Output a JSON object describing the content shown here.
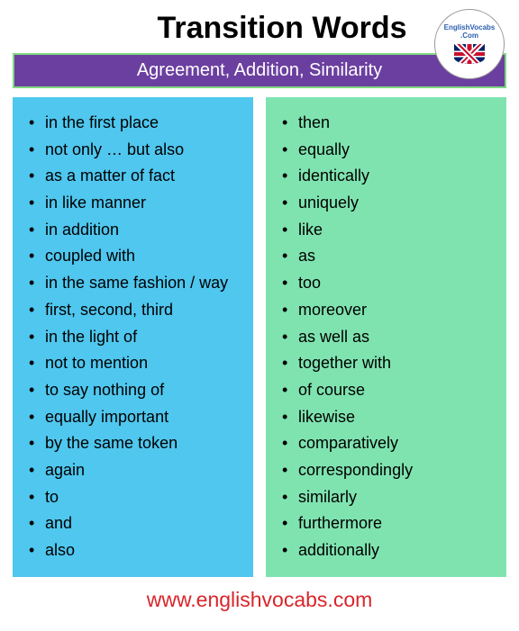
{
  "title": "Transition Words",
  "logo": {
    "line1": "EnglishVocabs",
    "line2": ".Com"
  },
  "subtitle": "Agreement, Addition, Similarity",
  "colors": {
    "subtitle_bg": "#6b3fa0",
    "subtitle_border": "#7fd87f",
    "left_col_bg": "#4fc7ef",
    "right_col_bg": "#7fe3b0",
    "footer_color": "#d9252a",
    "title_color": "#000000"
  },
  "left_items": [
    "in the first place",
    "not only … but also",
    "as a matter of fact",
    "in like manner",
    "in addition",
    "coupled with",
    "in the same fashion / way",
    "first, second, third",
    "in the light of",
    "not to mention",
    "to say nothing of",
    "equally important",
    "by the same token",
    "again",
    "to",
    "and",
    "also"
  ],
  "right_items": [
    "then",
    "equally",
    "identically",
    "uniquely",
    "like",
    "as",
    "too",
    "moreover",
    "as well as",
    "together with",
    "of course",
    "likewise",
    "comparatively",
    "correspondingly",
    "similarly",
    "furthermore",
    "additionally"
  ],
  "footer": "www.englishvocabs.com"
}
